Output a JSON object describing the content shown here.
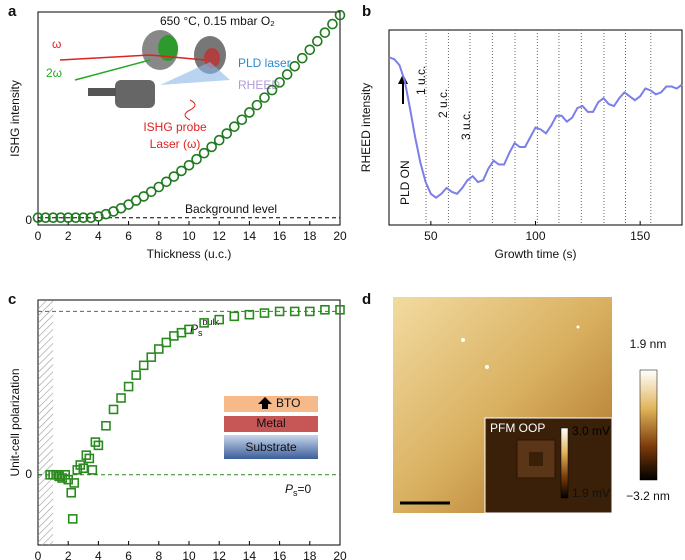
{
  "chart_data": [
    {
      "type": "scatter",
      "panel": "a",
      "xlabel": "Thickness (u.c.)",
      "ylabel": "ISHG intensity",
      "marker": "circle",
      "color": "#1f7a1f",
      "x": [
        0,
        0.5,
        1,
        1.5,
        2,
        2.5,
        3,
        3.5,
        4,
        4.5,
        5,
        5.5,
        6,
        6.5,
        7,
        7.5,
        8,
        8.5,
        9,
        9.5,
        10,
        10.5,
        11,
        11.5,
        12,
        12.5,
        13,
        13.5,
        14,
        14.5,
        15,
        15.5,
        16,
        16.5,
        17,
        17.5,
        18,
        18.5,
        19,
        19.5,
        20
      ],
      "values": [
        0.015,
        0.015,
        0.015,
        0.015,
        0.015,
        0.015,
        0.015,
        0.015,
        0.021,
        0.032,
        0.045,
        0.06,
        0.078,
        0.097,
        0.117,
        0.139,
        0.162,
        0.187,
        0.212,
        0.239,
        0.266,
        0.295,
        0.324,
        0.354,
        0.386,
        0.418,
        0.451,
        0.484,
        0.519,
        0.554,
        0.59,
        0.626,
        0.663,
        0.701,
        0.74,
        0.779,
        0.819,
        0.86,
        0.901,
        0.942,
        0.985
      ],
      "xlim": [
        0,
        20
      ],
      "xticks": [
        0,
        2,
        4,
        6,
        8,
        10,
        12,
        14,
        16,
        18,
        20
      ],
      "ylim": [
        -0.02,
        1.0
      ],
      "yticks": [
        0
      ],
      "background_level": 0.015,
      "annotations": {
        "condition": "650 °C, 0.15 mbar O₂",
        "omega": "ω",
        "two_omega": "2ω",
        "pld": "PLD laser",
        "rheed": "RHEED",
        "probe": "ISHG probe",
        "probe_laser": "Laser (ω)",
        "background": "Background level"
      }
    },
    {
      "type": "line",
      "panel": "b",
      "xlabel": "Growth time (s)",
      "ylabel": "RHEED intensity",
      "color": "#7b7fe8",
      "x": [
        30,
        32.5,
        35,
        37.5,
        40,
        42.5,
        45,
        47.5,
        50,
        52.5,
        55,
        57.5,
        60,
        62.5,
        65,
        67.5,
        70,
        72.5,
        75,
        77.5,
        80,
        82.5,
        85,
        87.5,
        90,
        92.5,
        95,
        97.5,
        100,
        102.5,
        105,
        107.5,
        110,
        112.5,
        115,
        117.5,
        120,
        122.5,
        125,
        127.5,
        130,
        132.5,
        135,
        137.5,
        140,
        142.5,
        145,
        147.5,
        150,
        152.5,
        155,
        157.5,
        160,
        162.5,
        165,
        167.5,
        170
      ],
      "values": [
        0.86,
        0.85,
        0.82,
        0.74,
        0.6,
        0.45,
        0.32,
        0.22,
        0.16,
        0.14,
        0.16,
        0.19,
        0.17,
        0.16,
        0.19,
        0.23,
        0.25,
        0.22,
        0.23,
        0.29,
        0.33,
        0.31,
        0.31,
        0.37,
        0.42,
        0.4,
        0.4,
        0.45,
        0.5,
        0.49,
        0.47,
        0.51,
        0.56,
        0.56,
        0.53,
        0.55,
        0.6,
        0.61,
        0.58,
        0.58,
        0.63,
        0.65,
        0.62,
        0.61,
        0.65,
        0.68,
        0.66,
        0.64,
        0.66,
        0.7,
        0.69,
        0.67,
        0.68,
        0.71,
        0.71,
        0.7,
        0.72
      ],
      "xlim": [
        30,
        170
      ],
      "xticks": [
        50,
        100,
        150
      ],
      "ylim": [
        0,
        1
      ],
      "vlines": [
        47.7,
        58.4,
        68.7,
        79.4,
        90.2,
        100.9,
        111.2,
        121.9,
        132.7,
        143,
        155.1
      ],
      "annotations": {
        "pld_on": "PLD ON",
        "uc1": "1 u.c.",
        "uc2": "2 u.c.",
        "uc3": "3 u.c."
      }
    },
    {
      "type": "scatter",
      "panel": "c",
      "xlabel": "Thickness (u.c.)",
      "ylabel": "Unit-cell polarization",
      "marker": "square",
      "color": "#2a8a1f",
      "x": [
        0.8,
        1,
        1.2,
        1.4,
        1.6,
        1.8,
        2,
        2.2,
        2.3,
        2.4,
        2.6,
        2.8,
        3,
        3.2,
        3.4,
        3.6,
        3.8,
        4,
        4.5,
        5,
        5.5,
        6,
        6.5,
        7,
        7.5,
        8,
        8.5,
        9,
        9.5,
        10,
        11,
        12,
        13,
        14,
        15,
        16,
        17,
        18,
        19,
        20
      ],
      "values": [
        0,
        0,
        0,
        -0.01,
        -0.02,
        0,
        -0.03,
        -0.11,
        -0.27,
        -0.05,
        0.03,
        0.06,
        0.04,
        0.12,
        0.1,
        0.03,
        0.2,
        0.18,
        0.3,
        0.4,
        0.47,
        0.54,
        0.61,
        0.67,
        0.72,
        0.77,
        0.81,
        0.85,
        0.87,
        0.89,
        0.93,
        0.95,
        0.97,
        0.98,
        0.99,
        1.0,
        1.0,
        1.0,
        1.01,
        1.01
      ],
      "xlim": [
        0,
        20
      ],
      "xticks": [
        0,
        2,
        4,
        6,
        8,
        10,
        12,
        14,
        16,
        18,
        20
      ],
      "ylim": [
        -0.43,
        1.07
      ],
      "yticks": [
        0
      ],
      "reference_lines": [
        0,
        1
      ],
      "hatched_xrange": [
        0,
        1
      ],
      "annotations": {
        "bulk": {
          "main": "P",
          "sub": "s",
          "sup": "bulk"
        },
        "zero": {
          "main": "P",
          "sub": "s",
          "rest": "=0"
        },
        "layers": [
          "BTO",
          "Metal",
          "Substrate"
        ]
      }
    },
    {
      "type": "image",
      "panel": "d",
      "colorbar_labels": [
        "1.9 nm",
        "−3.2 nm"
      ],
      "inset": {
        "title": "PFM OOP",
        "labels": [
          "3.0 mV",
          "1.9 mV"
        ]
      }
    }
  ]
}
